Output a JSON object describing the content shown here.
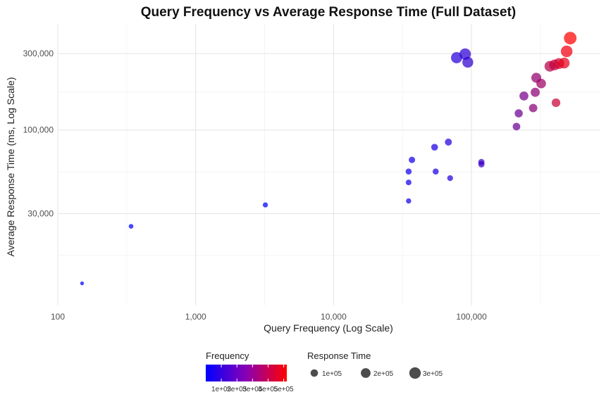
{
  "chart_data": {
    "type": "scatter",
    "title": "Query Frequency vs Average Response Time (Full Dataset)",
    "xlabel": "Query Frequency (Log Scale)",
    "ylabel": "Average Response Time (ms, Log Scale)",
    "xscale": "log",
    "yscale": "log",
    "xlim": [
      100,
      860000
    ],
    "ylim": [
      8000,
      460000
    ],
    "x_ticks": [
      {
        "value": 100,
        "label": "100"
      },
      {
        "value": 1000,
        "label": "1,000"
      },
      {
        "value": 10000,
        "label": "10,000"
      },
      {
        "value": 100000,
        "label": "100,000"
      }
    ],
    "y_ticks": [
      {
        "value": 30000,
        "label": "30,000"
      },
      {
        "value": 100000,
        "label": "100,000"
      },
      {
        "value": 300000,
        "label": "300,000"
      }
    ],
    "grid": true,
    "legend_position": "bottom",
    "color_legend": {
      "title": "Frequency",
      "low_color": "#0000ff",
      "high_color": "#ff0000",
      "min": 150,
      "max": 520000,
      "labels": [
        "1e+05",
        "2e+05",
        "3e+05",
        "4e+05",
        "5e+05"
      ]
    },
    "size_legend": {
      "title": "Response Time",
      "entries": [
        {
          "label": "1e+05",
          "value": 100000
        },
        {
          "label": "2e+05",
          "value": 200000
        },
        {
          "label": "3e+05",
          "value": 300000
        }
      ]
    },
    "points": [
      {
        "x": 150,
        "y": 11000
      },
      {
        "x": 340,
        "y": 25000
      },
      {
        "x": 3200,
        "y": 34000
      },
      {
        "x": 35000,
        "y": 36000
      },
      {
        "x": 35000,
        "y": 47000
      },
      {
        "x": 35000,
        "y": 55000
      },
      {
        "x": 37000,
        "y": 65000
      },
      {
        "x": 55000,
        "y": 55000
      },
      {
        "x": 54000,
        "y": 78000
      },
      {
        "x": 70000,
        "y": 50000
      },
      {
        "x": 68000,
        "y": 84000
      },
      {
        "x": 118000,
        "y": 63000
      },
      {
        "x": 118000,
        "y": 61000
      },
      {
        "x": 78000,
        "y": 283000
      },
      {
        "x": 90000,
        "y": 298000
      },
      {
        "x": 94000,
        "y": 265000
      },
      {
        "x": 212000,
        "y": 105000
      },
      {
        "x": 220000,
        "y": 127000
      },
      {
        "x": 240000,
        "y": 163000
      },
      {
        "x": 280000,
        "y": 137000
      },
      {
        "x": 290000,
        "y": 172000
      },
      {
        "x": 295000,
        "y": 212000
      },
      {
        "x": 320000,
        "y": 195000
      },
      {
        "x": 410000,
        "y": 148000
      },
      {
        "x": 370000,
        "y": 250000
      },
      {
        "x": 400000,
        "y": 255000
      },
      {
        "x": 430000,
        "y": 260000
      },
      {
        "x": 470000,
        "y": 262000
      },
      {
        "x": 490000,
        "y": 310000
      },
      {
        "x": 520000,
        "y": 375000
      }
    ]
  }
}
